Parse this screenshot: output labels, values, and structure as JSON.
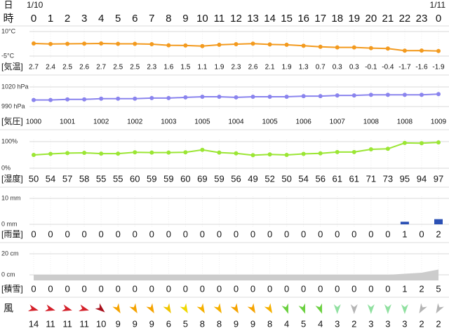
{
  "header": {
    "day_label": "日",
    "hour_label": "時",
    "dates": [
      "1/10",
      "1/11"
    ],
    "hours": [
      0,
      1,
      2,
      3,
      4,
      5,
      6,
      7,
      8,
      9,
      10,
      11,
      12,
      13,
      14,
      15,
      16,
      17,
      18,
      19,
      20,
      21,
      22,
      23,
      0
    ]
  },
  "chart_data": [
    {
      "type": "line",
      "row_label": "[気温]",
      "color": "#f39a1e",
      "values": [
        2.7,
        2.4,
        2.5,
        2.6,
        2.7,
        2.5,
        2.5,
        2.3,
        1.6,
        1.5,
        1.1,
        1.9,
        2.3,
        2.6,
        2.1,
        1.9,
        1.3,
        0.7,
        0.3,
        0.3,
        -0.1,
        -0.4,
        -1.7,
        -1.6,
        -1.9
      ],
      "ylim": [
        -5,
        10
      ],
      "yticks": [
        {
          "value": 10,
          "label": "10°C"
        },
        {
          "value": -5,
          "label": "-5°C"
        }
      ],
      "grid": true
    },
    {
      "type": "line",
      "row_label": "[気圧]",
      "color": "#8a84ee",
      "label_every": 2,
      "values": [
        1000,
        1000,
        1001,
        1001,
        1002,
        1002,
        1002,
        1003,
        1003,
        1004,
        1005,
        1005,
        1004,
        1005,
        1005,
        1005,
        1006,
        1006,
        1007,
        1007,
        1008,
        1008,
        1008,
        1008,
        1009
      ],
      "ylim": [
        990,
        1020
      ],
      "yticks": [
        {
          "value": 1020,
          "label": "1020 hPa"
        },
        {
          "value": 990,
          "label": "990 hPa"
        }
      ],
      "grid": true
    },
    {
      "type": "line",
      "row_label": "[湿度]",
      "color": "#9be634",
      "values": [
        50,
        54,
        57,
        58,
        55,
        55,
        60,
        59,
        59,
        60,
        69,
        59,
        56,
        49,
        52,
        50,
        54,
        56,
        61,
        61,
        71,
        73,
        95,
        94,
        97
      ],
      "ylim": [
        0,
        100
      ],
      "yticks": [
        {
          "value": 100,
          "label": "100%"
        },
        {
          "value": 0,
          "label": "0%"
        }
      ],
      "grid": true
    },
    {
      "type": "bar",
      "row_label": "[雨量]",
      "color": "#2b50b4",
      "values": [
        0,
        0,
        0,
        0,
        0,
        0,
        0,
        0,
        0,
        0,
        0,
        0,
        0,
        0,
        0,
        0,
        0,
        0,
        0,
        0,
        0,
        0,
        1,
        0,
        2
      ],
      "ylim": [
        0,
        10
      ],
      "yticks": [
        {
          "value": 10,
          "label": "10 mm"
        },
        {
          "value": 0,
          "label": "0 mm"
        }
      ],
      "grid": true
    },
    {
      "type": "area",
      "row_label": "[積雪]",
      "color": "#cccccc",
      "values": [
        0,
        0,
        0,
        0,
        0,
        0,
        0,
        0,
        0,
        0,
        0,
        0,
        0,
        0,
        0,
        0,
        0,
        0,
        0,
        0,
        0,
        0,
        1,
        2,
        5
      ],
      "ylim": [
        0,
        20
      ],
      "yticks": [
        {
          "value": 20,
          "label": "20 cm"
        },
        {
          "value": 0,
          "label": "0 cm"
        }
      ],
      "grid": true
    }
  ],
  "wind": {
    "row_label": "風",
    "speeds": [
      14,
      11,
      11,
      11,
      10,
      9,
      9,
      9,
      6,
      5,
      8,
      8,
      9,
      9,
      8,
      4,
      5,
      4,
      3,
      2,
      3,
      3,
      3,
      2,
      2
    ],
    "directions": [
      15,
      15,
      15,
      15,
      40,
      60,
      60,
      60,
      60,
      60,
      60,
      60,
      60,
      60,
      60,
      70,
      70,
      70,
      90,
      90,
      90,
      90,
      90,
      120,
      120
    ],
    "colors": [
      "#d4202a",
      "#d4202a",
      "#d4202a",
      "#d4202a",
      "#a8101c",
      "#f5a300",
      "#f5a300",
      "#f5a300",
      "#f0c400",
      "#f0d800",
      "#f5b000",
      "#f5b000",
      "#f5a300",
      "#f5a300",
      "#f5b000",
      "#6bd040",
      "#6bd040",
      "#6bd040",
      "#90e0a0",
      "#b4b4b4",
      "#90e0a0",
      "#90e0a0",
      "#90e0a0",
      "#b4b4b4",
      "#b4b4b4"
    ]
  }
}
